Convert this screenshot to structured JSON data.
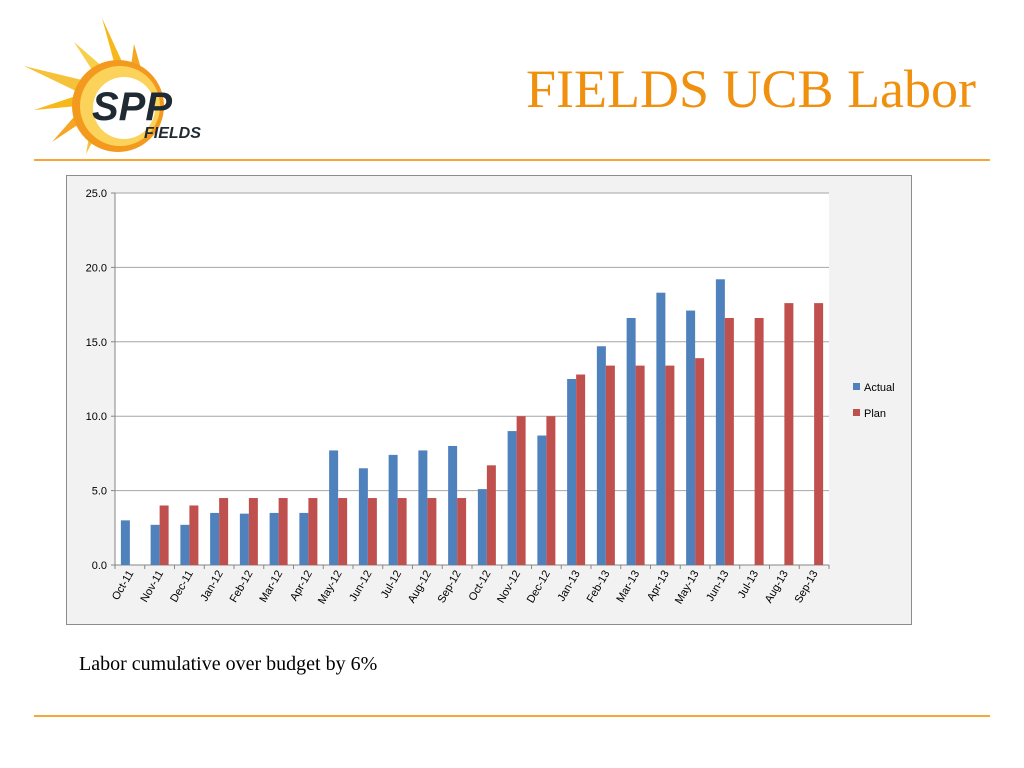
{
  "slide": {
    "title": "FIELDS UCB Labor",
    "caption": "Labor cumulative over budget by 6%",
    "accent_color": "#f0900f",
    "rule_color": "#f7a833"
  },
  "logo": {
    "text_main": "SPP",
    "text_sub": "FIELDS",
    "icon": "sun-icon"
  },
  "chart_data": {
    "type": "bar",
    "categories": [
      "Oct-11",
      "Nov-11",
      "Dec-11",
      "Jan-12",
      "Feb-12",
      "Mar-12",
      "Apr-12",
      "May-12",
      "Jun-12",
      "Jul-12",
      "Aug-12",
      "Sep-12",
      "Oct-12",
      "Nov-12",
      "Dec-12",
      "Jan-13",
      "Feb-13",
      "Mar-13",
      "Apr-13",
      "May-13",
      "Jun-13",
      "Jul-13",
      "Aug-13",
      "Sep-13"
    ],
    "series": [
      {
        "name": "Actual",
        "color": "#4f81bd",
        "values": [
          3.0,
          2.7,
          2.7,
          3.5,
          3.45,
          3.5,
          3.5,
          7.7,
          6.5,
          7.4,
          7.7,
          8.0,
          5.1,
          9.0,
          8.7,
          12.5,
          14.7,
          16.6,
          18.3,
          17.1,
          19.2,
          null,
          null,
          null
        ]
      },
      {
        "name": "Plan",
        "color": "#c0504d",
        "values": [
          null,
          4.0,
          4.0,
          4.5,
          4.5,
          4.5,
          4.5,
          4.5,
          4.5,
          4.5,
          4.5,
          4.5,
          6.7,
          10.0,
          10.0,
          12.8,
          13.4,
          13.4,
          13.4,
          13.9,
          16.6,
          16.6,
          17.6,
          17.6
        ]
      }
    ],
    "ylim": [
      0,
      25
    ],
    "yticks": [
      "0.0",
      "5.0",
      "10.0",
      "15.0",
      "20.0",
      "25.0"
    ],
    "grid": true,
    "legend_position": "right"
  }
}
